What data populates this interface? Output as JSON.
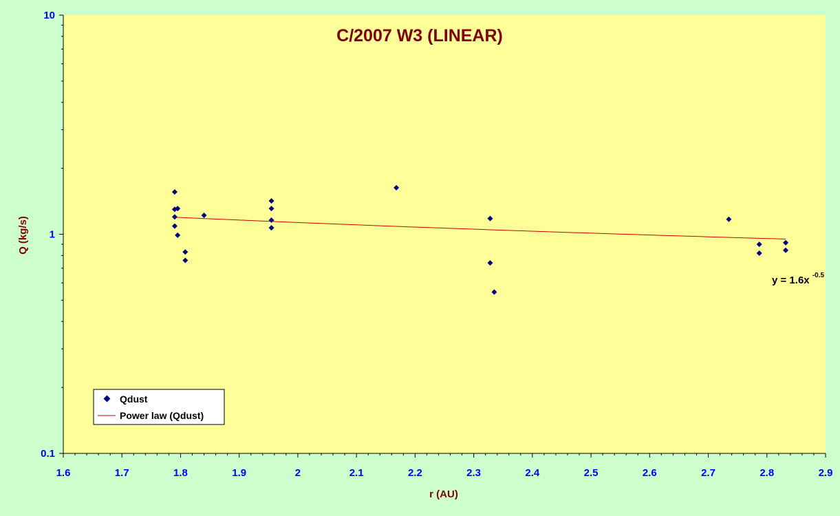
{
  "chart_data": {
    "type": "scatter",
    "title": "C/2007 W3 (LINEAR)",
    "xlabel": "r (AU)",
    "ylabel": "Q (kg/s)",
    "xlim": [
      1.6,
      2.9
    ],
    "ylim": [
      0.1,
      10
    ],
    "y_scale": "log",
    "x_ticks": [
      "1.6",
      "1.7",
      "1.8",
      "1.9",
      "2",
      "2.1",
      "2.2",
      "2.3",
      "2.4",
      "2.5",
      "2.6",
      "2.7",
      "2.8",
      "2.9"
    ],
    "y_ticks": [
      "0.1",
      "1",
      "10"
    ],
    "grid": false,
    "legend_position": "bottom-left",
    "series": [
      {
        "name": "Qdust",
        "kind": "points",
        "x": [
          1.79,
          1.79,
          1.795,
          1.79,
          1.79,
          1.795,
          1.808,
          1.808,
          1.84,
          1.955,
          1.955,
          1.955,
          1.955,
          2.168,
          2.328,
          2.328,
          2.335,
          2.735,
          2.787,
          2.787,
          2.832,
          2.832
        ],
        "y": [
          1.56,
          1.3,
          1.31,
          1.2,
          1.09,
          0.99,
          0.83,
          0.76,
          1.22,
          1.42,
          1.31,
          1.16,
          1.07,
          1.63,
          1.18,
          0.74,
          0.545,
          1.17,
          0.9,
          0.82,
          0.915,
          0.845
        ]
      },
      {
        "name": "Power law (Qdust)",
        "kind": "trendline",
        "coefficient": 1.6,
        "exponent": -0.5,
        "x_range": [
          1.79,
          2.832
        ]
      }
    ],
    "annotation": {
      "base": "y = 1.6x",
      "superscript": "-0.5"
    },
    "colors": {
      "outer_background": "#ccffcc",
      "plot_background": "#ffff99",
      "title": "#800000",
      "axis_titles": "#800000",
      "tick_labels": "#0000ff",
      "markers": "#000080",
      "trendline": "#cc0000"
    }
  }
}
